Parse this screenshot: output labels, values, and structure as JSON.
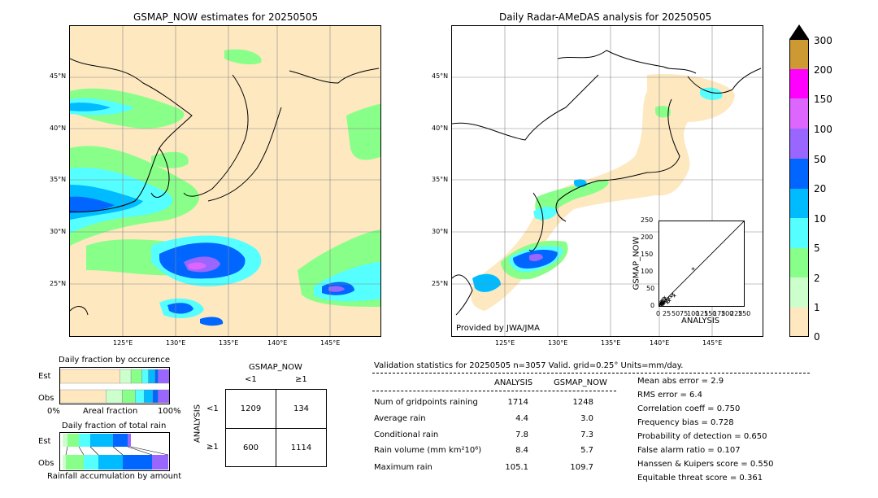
{
  "left_map": {
    "title": "GSMAP_NOW estimates for 20250505",
    "lat_labels": [
      "45°N",
      "40°N",
      "35°N",
      "30°N",
      "25°N"
    ],
    "lon_labels": [
      "125°E",
      "130°E",
      "135°E",
      "140°E",
      "145°E"
    ]
  },
  "right_map": {
    "title": "Daily Radar-AMeDAS analysis for 20250505",
    "lat_labels": [
      "45°N",
      "40°N",
      "35°N",
      "30°N",
      "25°N"
    ],
    "lon_labels": [
      "125°E",
      "130°E",
      "135°E",
      "140°E",
      "145°E"
    ],
    "credit": "Provided by JWA/JMA"
  },
  "colorbar": {
    "labels": [
      "300",
      "200",
      "150",
      "100",
      "50",
      "20",
      "10",
      "5",
      "2",
      "1",
      "0"
    ],
    "colors": [
      "#cc9933",
      "#ff00ff",
      "#dd66ff",
      "#9966ff",
      "#0066ff",
      "#00bbff",
      "#55ffff",
      "#88ff88",
      "#ccffcc",
      "#ffe8c0"
    ]
  },
  "scatter": {
    "xlabel": "ANALYSIS",
    "ylabel": "GSMAP_NOW",
    "ticks": [
      "0",
      "25",
      "50",
      "75",
      "100",
      "125",
      "150",
      "175",
      "200",
      "225",
      "250"
    ],
    "yticks": [
      "0",
      "50",
      "100",
      "150",
      "200",
      "250"
    ]
  },
  "occurrence": {
    "title": "Daily fraction by occurence",
    "rows": [
      "Est",
      "Obs"
    ],
    "xlabel": "Areal fraction",
    "xmin": "0%",
    "xmax": "100%",
    "est_fractions": [
      0.55,
      0.1,
      0.1,
      0.06,
      0.06,
      0.03
    ],
    "obs_fractions": [
      0.42,
      0.15,
      0.12,
      0.08,
      0.08,
      0.05
    ]
  },
  "accumulation": {
    "title": "Daily fraction of total rain",
    "rows": [
      "Est",
      "Obs"
    ],
    "xlabel": "Rainfall accumulation by amount"
  },
  "contingency": {
    "title": "GSMAP_NOW",
    "col_labels": [
      "<1",
      "≥1"
    ],
    "row_labels": [
      "<1",
      "≥1"
    ],
    "side_label": "ANALYSIS",
    "cells": [
      [
        "1209",
        "134"
      ],
      [
        "600",
        "1114"
      ]
    ]
  },
  "validation": {
    "header": "Validation statistics for 20250505  n=3057 Valid. grid=0.25° Units=mm/day.",
    "col_analysis": "ANALYSIS",
    "col_gsmap": "GSMAP_NOW",
    "rows": [
      {
        "label": "Num of gridpoints raining",
        "analysis": "1714",
        "gsmap": "1248"
      },
      {
        "label": "Average rain",
        "analysis": "4.4",
        "gsmap": "3.0"
      },
      {
        "label": "Conditional rain",
        "analysis": "7.8",
        "gsmap": "7.3"
      },
      {
        "label": "Rain volume (mm km²10⁶)",
        "analysis": "8.4",
        "gsmap": "5.7"
      },
      {
        "label": "Maximum rain",
        "analysis": "105.1",
        "gsmap": "109.7"
      }
    ],
    "scores": [
      "Mean abs error =    2.9",
      "RMS error =    6.4",
      "Correlation coeff =  0.750",
      "Frequency bias =  0.728",
      "Probability of detection =  0.650",
      "False alarm ratio =  0.107",
      "Hanssen & Kuipers score =  0.550",
      "Equitable threat score =  0.361"
    ]
  }
}
